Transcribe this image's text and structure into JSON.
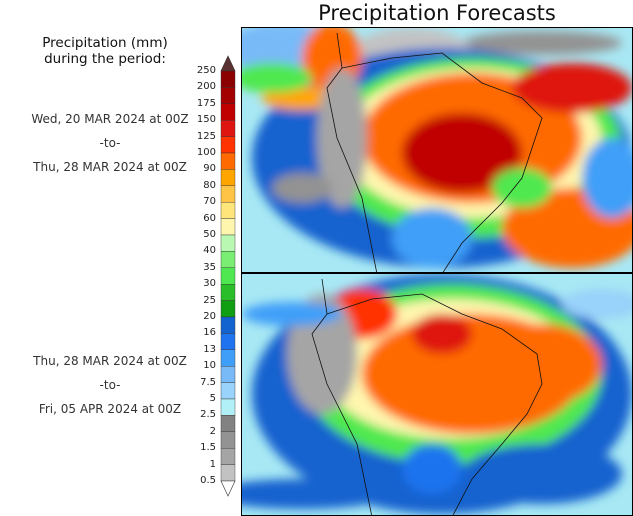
{
  "title": "Precipitation Forecasts",
  "legend": {
    "title_line1": "Precipitation (mm)",
    "title_line2": "during the period:"
  },
  "periods": [
    {
      "start": "Wed, 20 MAR 2024 at 00Z",
      "sep": "-to-",
      "end": "Thu, 28 MAR 2024 at 00Z"
    },
    {
      "start": "Thu, 28 MAR 2024 at 00Z",
      "sep": "-to-",
      "end": "Fri, 05 APR 2024 at 00Z"
    }
  ],
  "colorbar": {
    "labels": [
      "250",
      "200",
      "175",
      "150",
      "125",
      "100",
      "90",
      "80",
      "70",
      "60",
      "50",
      "40",
      "35",
      "30",
      "25",
      "20",
      "16",
      "13",
      "10",
      "7.5",
      "5",
      "2.5",
      "2",
      "1.5",
      "1",
      "0.5"
    ],
    "over_color": "#5a3030",
    "under_color": "#ffffff",
    "colors": [
      "#8b0000",
      "#a30000",
      "#c00000",
      "#de1510",
      "#ff3300",
      "#ff6a00",
      "#ffa500",
      "#ffc445",
      "#ffe57a",
      "#fff6ae",
      "#b9f8b2",
      "#7aee72",
      "#50e850",
      "#2abf2a",
      "#109f12",
      "#1262cf",
      "#1f73ee",
      "#3f9ff8",
      "#78b9f8",
      "#99d2fa",
      "#b2f0f8",
      "#828282",
      "#939393",
      "#a5a5a5",
      "#c2c2c2"
    ]
  }
}
